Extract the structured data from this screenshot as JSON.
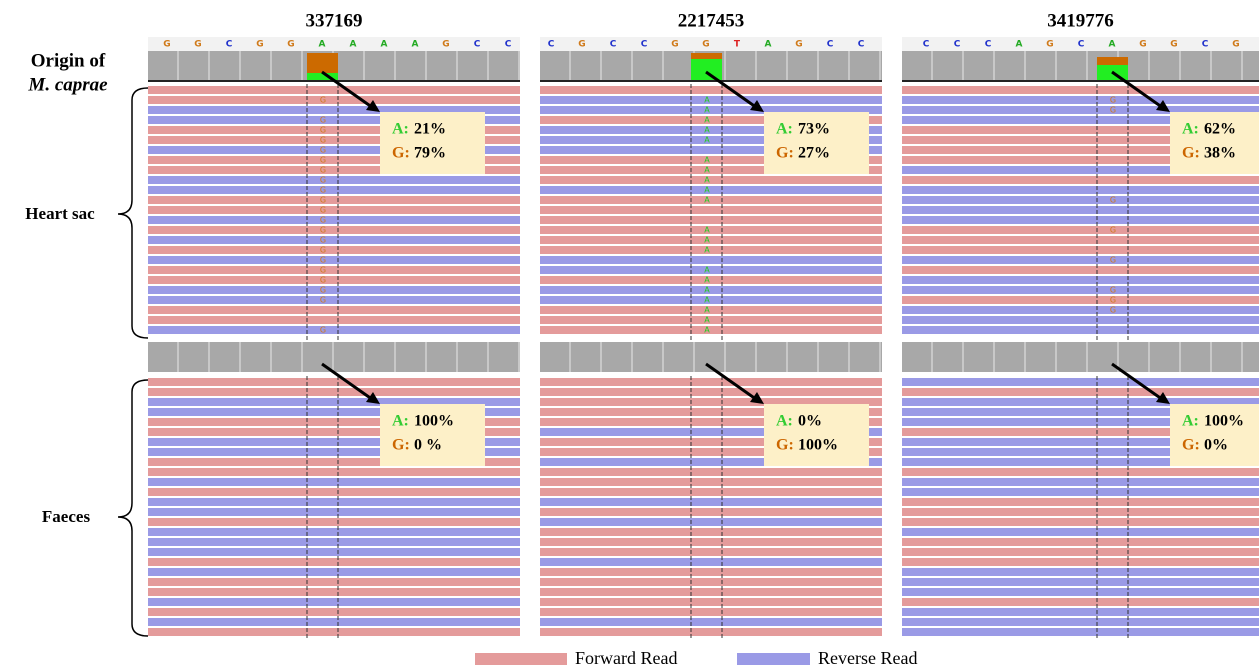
{
  "row_labels": {
    "origin": "Origin of",
    "origin_species": "M. caprae",
    "heart_sac": "Heart sac",
    "faeces": "Faeces"
  },
  "allele_labels": {
    "a": "A:",
    "g": "G:"
  },
  "panels": [
    {
      "title": "337169",
      "reference": [
        "G",
        "G",
        "C",
        "G",
        "G",
        "A",
        "A",
        "A",
        "A",
        "G",
        "C",
        "C"
      ],
      "read_base": "G",
      "heart_sac": {
        "a": "21%",
        "g": "79%"
      },
      "faeces": {
        "a": "100%",
        "g": "0 %"
      }
    },
    {
      "title": "2217453",
      "reference": [
        "C",
        "G",
        "C",
        "C",
        "G",
        "G",
        "T",
        "A",
        "G",
        "C",
        "C"
      ],
      "read_base": "A",
      "heart_sac": {
        "a": "73%",
        "g": "27%"
      },
      "faeces": {
        "a": "0%",
        "g": "100%"
      }
    },
    {
      "title": "3419776",
      "reference": [
        "C",
        "C",
        "C",
        "A",
        "G",
        "C",
        "A",
        "G",
        "G",
        "C",
        "G"
      ],
      "read_base": "G",
      "heart_sac": {
        "a": "62%",
        "g": "38%"
      },
      "faeces": {
        "a": "100%",
        "g": "0%"
      }
    }
  ],
  "legend": {
    "forward": "Forward Read",
    "reverse": "Reverse Read"
  }
}
